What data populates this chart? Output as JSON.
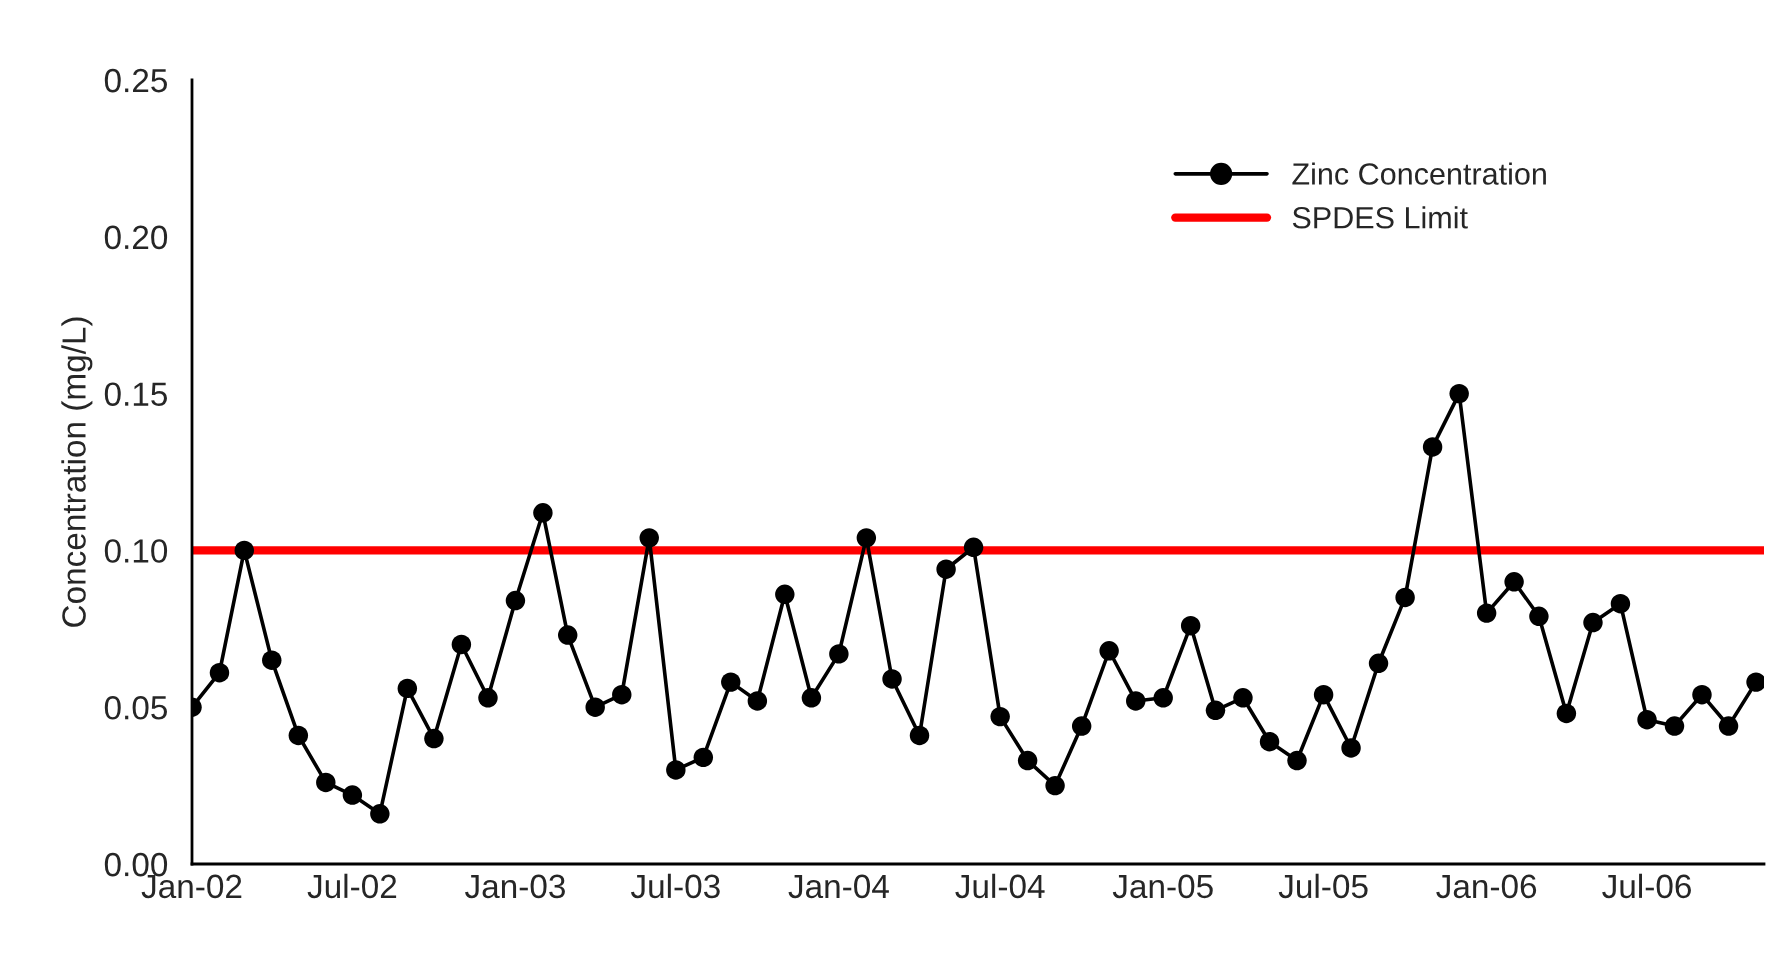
{
  "chart_data": {
    "type": "line",
    "ylabel": "Concentration (mg/L)",
    "x": [
      "2002-01",
      "2002-02",
      "2002-03",
      "2002-04",
      "2002-05",
      "2002-06",
      "2002-07",
      "2002-08",
      "2002-09",
      "2002-10",
      "2002-11",
      "2002-12",
      "2003-01",
      "2003-02",
      "2003-03",
      "2003-04",
      "2003-05",
      "2003-06",
      "2003-07",
      "2003-08",
      "2003-09",
      "2003-10",
      "2003-11",
      "2003-12",
      "2004-01",
      "2004-02",
      "2004-03",
      "2004-04",
      "2004-05",
      "2004-06",
      "2004-07",
      "2004-08",
      "2004-09",
      "2004-10",
      "2004-11",
      "2004-12",
      "2005-01",
      "2005-02",
      "2005-03",
      "2005-04",
      "2005-05",
      "2005-06",
      "2005-07",
      "2005-08",
      "2005-09",
      "2005-10",
      "2005-11",
      "2005-12",
      "2006-01",
      "2006-02",
      "2006-03",
      "2006-04",
      "2006-05",
      "2006-06",
      "2006-07",
      "2006-08",
      "2006-09",
      "2006-10",
      "2006-11"
    ],
    "series": [
      {
        "name": "Zinc Concentration",
        "color": "#000000",
        "marker": "circle",
        "line_style": "solid",
        "values": [
          0.05,
          0.061,
          0.1,
          0.065,
          0.041,
          0.026,
          0.022,
          0.016,
          0.056,
          0.04,
          0.07,
          0.053,
          0.084,
          0.112,
          0.073,
          0.05,
          0.054,
          0.104,
          0.03,
          0.034,
          0.058,
          0.052,
          0.086,
          0.053,
          0.067,
          0.104,
          0.059,
          0.041,
          0.094,
          0.101,
          0.047,
          0.033,
          0.025,
          0.044,
          0.068,
          0.052,
          0.053,
          0.076,
          0.049,
          0.053,
          0.039,
          0.033,
          0.054,
          0.037,
          0.064,
          0.085,
          0.133,
          0.15,
          0.08,
          0.09,
          0.079,
          0.048,
          0.077,
          0.083,
          0.046,
          0.044,
          0.054,
          0.044,
          0.058
        ]
      }
    ],
    "ref_lines": [
      {
        "axis": "y",
        "value": 0.1,
        "label": "SPDES Limit",
        "color": "#ff0000",
        "line_style": "solid"
      }
    ],
    "xlim": [
      "2002-01-01",
      "2006-11-10"
    ],
    "xticks": [
      {
        "value": "2002-01",
        "label": "Jan-02"
      },
      {
        "value": "2002-07",
        "label": "Jul-02"
      },
      {
        "value": "2003-01",
        "label": "Jan-03"
      },
      {
        "value": "2003-07",
        "label": "Jul-03"
      },
      {
        "value": "2004-01",
        "label": "Jan-04"
      },
      {
        "value": "2004-07",
        "label": "Jul-04"
      },
      {
        "value": "2005-01",
        "label": "Jan-05"
      },
      {
        "value": "2005-07",
        "label": "Jul-05"
      },
      {
        "value": "2006-01",
        "label": "Jan-06"
      },
      {
        "value": "2006-07",
        "label": "Jul-06"
      }
    ],
    "ylim": [
      0,
      0.25
    ],
    "yticks": [
      {
        "value": 0,
        "label": "0.00"
      },
      {
        "value": 0.05,
        "label": "0.05"
      },
      {
        "value": 0.1,
        "label": "0.10"
      },
      {
        "value": 0.15,
        "label": "0.15"
      },
      {
        "value": 0.2,
        "label": "0.20"
      },
      {
        "value": 0.25,
        "label": "0.25"
      }
    ],
    "grid": false,
    "legend": "top right"
  }
}
